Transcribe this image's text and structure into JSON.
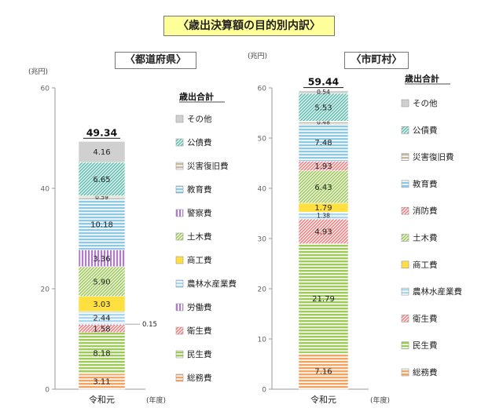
{
  "title": "〈歳出決算額の目的別内訳〉",
  "chart_data": [
    {
      "type": "stacked-bar",
      "title": "〈都道府県〉",
      "unit_label": "(兆円)",
      "x_unit": "(年度)",
      "categories": [
        "令和元"
      ],
      "ylim": [
        0,
        60
      ],
      "yticks": [
        0,
        20,
        40,
        60
      ],
      "total": "49.34",
      "legend_title": "歳出合計",
      "series": [
        {
          "name": "総務費",
          "value": 3.11,
          "label": "3.11",
          "color": "#f4a460",
          "pattern": "h"
        },
        {
          "name": "民生費",
          "value": 8.18,
          "label": "8.18",
          "color": "#9ccc55",
          "pattern": "h"
        },
        {
          "name": "衛生費",
          "value": 1.58,
          "label": "1.58",
          "color": "#ee8080",
          "pattern": "d"
        },
        {
          "name": "労働費",
          "value": 0.15,
          "label": "0.15",
          "color": "#b07cc8",
          "pattern": "v",
          "callout": true
        },
        {
          "name": "農林水産業費",
          "value": 2.44,
          "label": "2.44",
          "color": "#a8d8f0",
          "pattern": "h"
        },
        {
          "name": "商工費",
          "value": 3.03,
          "label": "3.03",
          "color": "#ffe040",
          "pattern": "solid"
        },
        {
          "name": "土木費",
          "value": 5.9,
          "label": "5.90",
          "color": "#9ccc55",
          "pattern": "d"
        },
        {
          "name": "警察費",
          "value": 3.36,
          "label": "3.36",
          "color": "#b07cc8",
          "pattern": "v"
        },
        {
          "name": "教育費",
          "value": 10.18,
          "label": "10.18",
          "color": "#8ecae6",
          "pattern": "h"
        },
        {
          "name": "災害復旧費",
          "value": 0.59,
          "label": "0.59",
          "color": "#c8b89a",
          "pattern": "h"
        },
        {
          "name": "公債費",
          "value": 6.65,
          "label": "6.65",
          "color": "#5cc0b0",
          "pattern": "d"
        },
        {
          "name": "その他",
          "value": 4.16,
          "label": "4.16",
          "color": "#d0d0d0",
          "pattern": "solid"
        }
      ],
      "legend": [
        "その他",
        "公債費",
        "災害復旧費",
        "教育費",
        "警察費",
        "土木費",
        "商工費",
        "農林水産業費",
        "労働費",
        "衛生費",
        "民生費",
        "総務費"
      ]
    },
    {
      "type": "stacked-bar",
      "title": "〈市町村〉",
      "unit_label": "(兆円)",
      "x_unit": "(年度)",
      "categories": [
        "令和元"
      ],
      "ylim": [
        0,
        60
      ],
      "yticks": [
        0,
        10,
        20,
        30,
        40,
        50,
        60
      ],
      "total": "59.44",
      "legend_title": "歳出合計",
      "series": [
        {
          "name": "総務費",
          "value": 7.16,
          "label": "7.16",
          "color": "#f4a460",
          "pattern": "h"
        },
        {
          "name": "民生費",
          "value": 21.79,
          "label": "21.79",
          "color": "#9ccc55",
          "pattern": "h"
        },
        {
          "name": "衛生費",
          "value": 4.93,
          "label": "4.93",
          "color": "#ee8080",
          "pattern": "d"
        },
        {
          "name": "農林水産業費",
          "value": 1.38,
          "label": "1.38",
          "color": "#a8d8f0",
          "pattern": "h"
        },
        {
          "name": "商工費",
          "value": 1.79,
          "label": "1.79",
          "color": "#ffe040",
          "pattern": "solid"
        },
        {
          "name": "土木費",
          "value": 6.43,
          "label": "6.43",
          "color": "#9ccc55",
          "pattern": "d"
        },
        {
          "name": "消防費",
          "value": 1.93,
          "label": "1.93",
          "color": "#ee8080",
          "pattern": "d"
        },
        {
          "name": "教育費",
          "value": 7.48,
          "label": "7.48",
          "color": "#8ecae6",
          "pattern": "h"
        },
        {
          "name": "災害復旧費",
          "value": 0.48,
          "label": "0.48",
          "color": "#c8b89a",
          "pattern": "h"
        },
        {
          "name": "公債費",
          "value": 5.53,
          "label": "5.53",
          "color": "#5cc0b0",
          "pattern": "d"
        },
        {
          "name": "その他",
          "value": 0.54,
          "label": "0.54",
          "color": "#d0d0d0",
          "pattern": "solid"
        }
      ],
      "legend": [
        "その他",
        "公債費",
        "災害復旧費",
        "教育費",
        "消防費",
        "土木費",
        "商工費",
        "農林水産業費",
        "衛生費",
        "民生費",
        "総務費"
      ]
    }
  ]
}
